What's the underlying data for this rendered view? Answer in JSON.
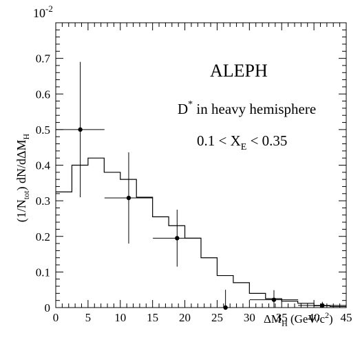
{
  "chart_data": {
    "type": "line",
    "experiment": "ALEPH",
    "selection_line1": "D",
    "selection_line1_sup": "*",
    "selection_line1_rest": " in heavy hemisphere",
    "cut_parts": [
      "0.1 < X",
      "E",
      " < 0.35"
    ],
    "ylabel_parts": [
      "(1/N",
      "tot",
      ") dN/dΔM",
      "H"
    ],
    "xlabel_parts": [
      "ΔM",
      "H",
      " (GeV/c",
      "2",
      ")"
    ],
    "y_exponent": "10",
    "y_exponent_power": "-2",
    "xlim": [
      0,
      45
    ],
    "ylim": [
      0,
      0.8
    ],
    "x_ticks": [
      "0",
      "5",
      "10",
      "15",
      "20",
      "25",
      "30",
      "35",
      "40",
      "45"
    ],
    "x_tick_values": [
      0,
      5,
      10,
      15,
      20,
      25,
      30,
      35,
      40,
      45
    ],
    "y_ticks": [
      "0",
      "0.1",
      "0.2",
      "0.3",
      "0.4",
      "0.5",
      "0.6",
      "0.7"
    ],
    "y_tick_values": [
      0,
      0.1,
      0.2,
      0.3,
      0.4,
      0.5,
      0.6,
      0.7
    ],
    "series": [
      {
        "kind": "histogram",
        "bin_width": 2.5,
        "bin_edges": [
          0,
          2.5,
          5,
          7.5,
          10,
          12.5,
          15,
          17.5,
          20,
          22.5,
          25,
          27.5,
          30,
          32.5,
          35,
          37.5,
          40,
          42.5,
          45
        ],
        "values": [
          0.325,
          0.4,
          0.42,
          0.38,
          0.36,
          0.31,
          0.255,
          0.23,
          0.195,
          0.14,
          0.09,
          0.07,
          0.04,
          0.025,
          0.018,
          0.012,
          0.005,
          0.003
        ]
      },
      {
        "kind": "points",
        "x": [
          3.8,
          11.3,
          18.8,
          26.3,
          33.8,
          41.3
        ],
        "y": [
          0.5,
          0.308,
          0.195,
          0.0,
          0.022,
          0.006
        ],
        "xerr": [
          3.75,
          3.75,
          3.75,
          3.75,
          3.75,
          3.75
        ],
        "yerr": [
          0.19,
          0.128,
          0.08,
          0.05,
          0.027,
          0.01
        ]
      }
    ]
  }
}
